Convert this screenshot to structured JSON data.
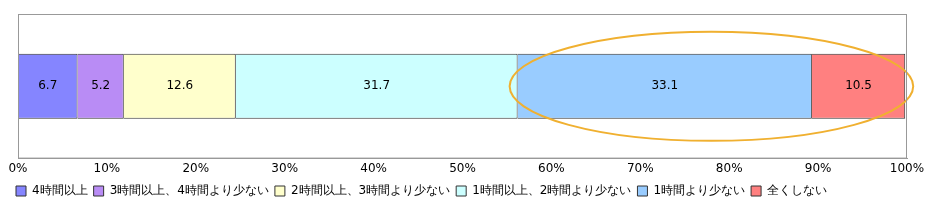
{
  "chart_data": {
    "type": "bar",
    "orientation": "horizontal",
    "stacked": true,
    "data_labels": true,
    "grid": false,
    "legend": "bottom",
    "categories": [
      null
    ],
    "series": [
      {
        "name": "4時間以上",
        "color": "#8585ff",
        "values": [
          6.7
        ]
      },
      {
        "name": "3時間以上、4時間より少ない",
        "color": "#b98cf5",
        "values": [
          5.2
        ]
      },
      {
        "name": "2時間以上、3時間より少ない",
        "color": "#ffffcc",
        "values": [
          12.6
        ]
      },
      {
        "name": "1時間以上、2時間より少ない",
        "color": "#ccffff",
        "values": [
          31.7
        ]
      },
      {
        "name": "1時間より少ない",
        "color": "#99ccff",
        "values": [
          33.1
        ]
      },
      {
        "name": "全くしない",
        "color": "#ff8080",
        "values": [
          10.5
        ]
      }
    ],
    "xlim": [
      0,
      100
    ],
    "xticks": [
      {
        "value": 0,
        "label": "0%"
      },
      {
        "value": 10,
        "label": "10%"
      },
      {
        "value": 20,
        "label": "20%"
      },
      {
        "value": 30,
        "label": "30%"
      },
      {
        "value": 40,
        "label": "40%"
      },
      {
        "value": 50,
        "label": "50%"
      },
      {
        "value": 60,
        "label": "60%"
      },
      {
        "value": 70,
        "label": "70%"
      },
      {
        "value": 80,
        "label": "80%"
      },
      {
        "value": 90,
        "label": "90%"
      },
      {
        "value": 100,
        "label": "100%"
      }
    ]
  }
}
